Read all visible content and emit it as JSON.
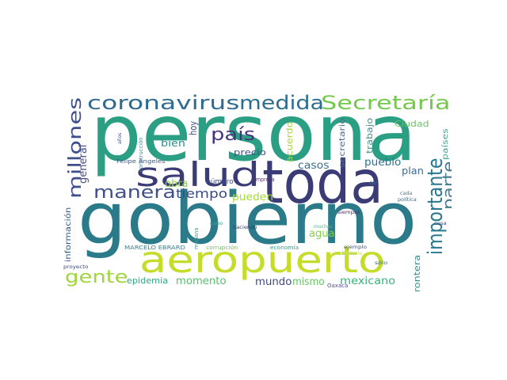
{
  "words": [
    {
      "t": "persona",
      "c": "#2a9f84"
    },
    {
      "t": "gobierno",
      "c": "#2a7a8a"
    },
    {
      "t": "toda",
      "c": "#3b3c76"
    },
    {
      "t": "aeropuerto",
      "c": "#c5dc2b"
    },
    {
      "t": "salud",
      "c": "#3b3c76"
    },
    {
      "t": "coronavirus",
      "c": "#2e6b8e"
    },
    {
      "t": "medida",
      "c": "#2c6e8e"
    },
    {
      "t": "Secretaría",
      "c": "#74c94d"
    },
    {
      "t": "importante",
      "c": "#28788e"
    },
    {
      "t": "millones",
      "c": "#3f4f8b"
    },
    {
      "t": "manera",
      "c": "#3f4f8b"
    },
    {
      "t": "país",
      "c": "#46337e"
    },
    {
      "t": "gente",
      "c": "#9fd63b"
    },
    {
      "t": "parte",
      "c": "#477c91"
    },
    {
      "t": "tiempo",
      "c": "#3a4b88"
    },
    {
      "t": "obra",
      "c": "#8bd244"
    },
    {
      "t": "momento",
      "c": "#57c06a"
    },
    {
      "t": "mexicano",
      "c": "#3bb17b"
    },
    {
      "t": "epidemia",
      "c": "#2fa585"
    },
    {
      "t": "mundo",
      "c": "#3f4c8a"
    },
    {
      "t": "mismo",
      "c": "#67c663"
    },
    {
      "t": "agua",
      "c": "#85d049"
    },
    {
      "t": "pueden",
      "c": "#a5db36"
    },
    {
      "t": "casos",
      "c": "#3f6e90"
    },
    {
      "t": "pueblo",
      "c": "#2c728e"
    },
    {
      "t": "plan",
      "c": "#3a6a93"
    },
    {
      "t": "bien",
      "c": "#2b8f8a"
    },
    {
      "t": "hoy",
      "c": "#3a4d8b"
    },
    {
      "t": "general",
      "c": "#474e83"
    },
    {
      "t": "precio",
      "c": "#3f5084"
    },
    {
      "t": "número",
      "c": "#3d4a86"
    },
    {
      "t": "frontera",
      "c": "#3a8e89"
    },
    {
      "t": "Ciudad",
      "c": "#6ac464"
    },
    {
      "t": "trabajo",
      "c": "#4f8e8a"
    },
    {
      "t": "secretario",
      "c": "#4f6d8e"
    },
    {
      "t": "acuerdo",
      "c": "#a9d33a"
    },
    {
      "t": "países",
      "c": "#4aa38c"
    },
    {
      "t": "información",
      "c": "#3b5f8a"
    },
    {
      "t": "construcción",
      "c": "#4f8ba0"
    },
    {
      "t": "años",
      "c": "#3b4c85"
    },
    {
      "t": "Felipe Ángeles",
      "c": "#3c5a86"
    },
    {
      "t": "cabo",
      "c": "#4c9a7c"
    },
    {
      "t": "haciendo",
      "c": "#3b3c6c"
    },
    {
      "t": "empresa",
      "c": "#5a2f6e"
    },
    {
      "t": "dar",
      "c": "#3e6b8c"
    },
    {
      "t": "cada",
      "c": "#4b7a8e"
    },
    {
      "t": "política",
      "c": "#3b6b8e"
    },
    {
      "t": "siempre",
      "c": "#4a2e6b"
    },
    {
      "t": "mañana",
      "c": "#4e9a93"
    },
    {
      "t": "muchas",
      "c": "#5fa88b"
    },
    {
      "t": "cosa",
      "c": "#3a4a7a"
    },
    {
      "t": "MARCELO EBRARD",
      "c": "#3a7e8e"
    },
    {
      "t": "corrupción",
      "c": "#7ab86a"
    },
    {
      "t": "economía",
      "c": "#3aa08e"
    },
    {
      "t": "ejemplo",
      "c": "#3b5a88"
    },
    {
      "t": "proyecto",
      "c": "#3b4a80"
    },
    {
      "t": "sólo",
      "c": "#3b6a8c"
    },
    {
      "t": "Oaxaca",
      "c": "#5a4a9a"
    },
    {
      "t": "Godavie",
      "c": "#cfe07a"
    }
  ]
}
